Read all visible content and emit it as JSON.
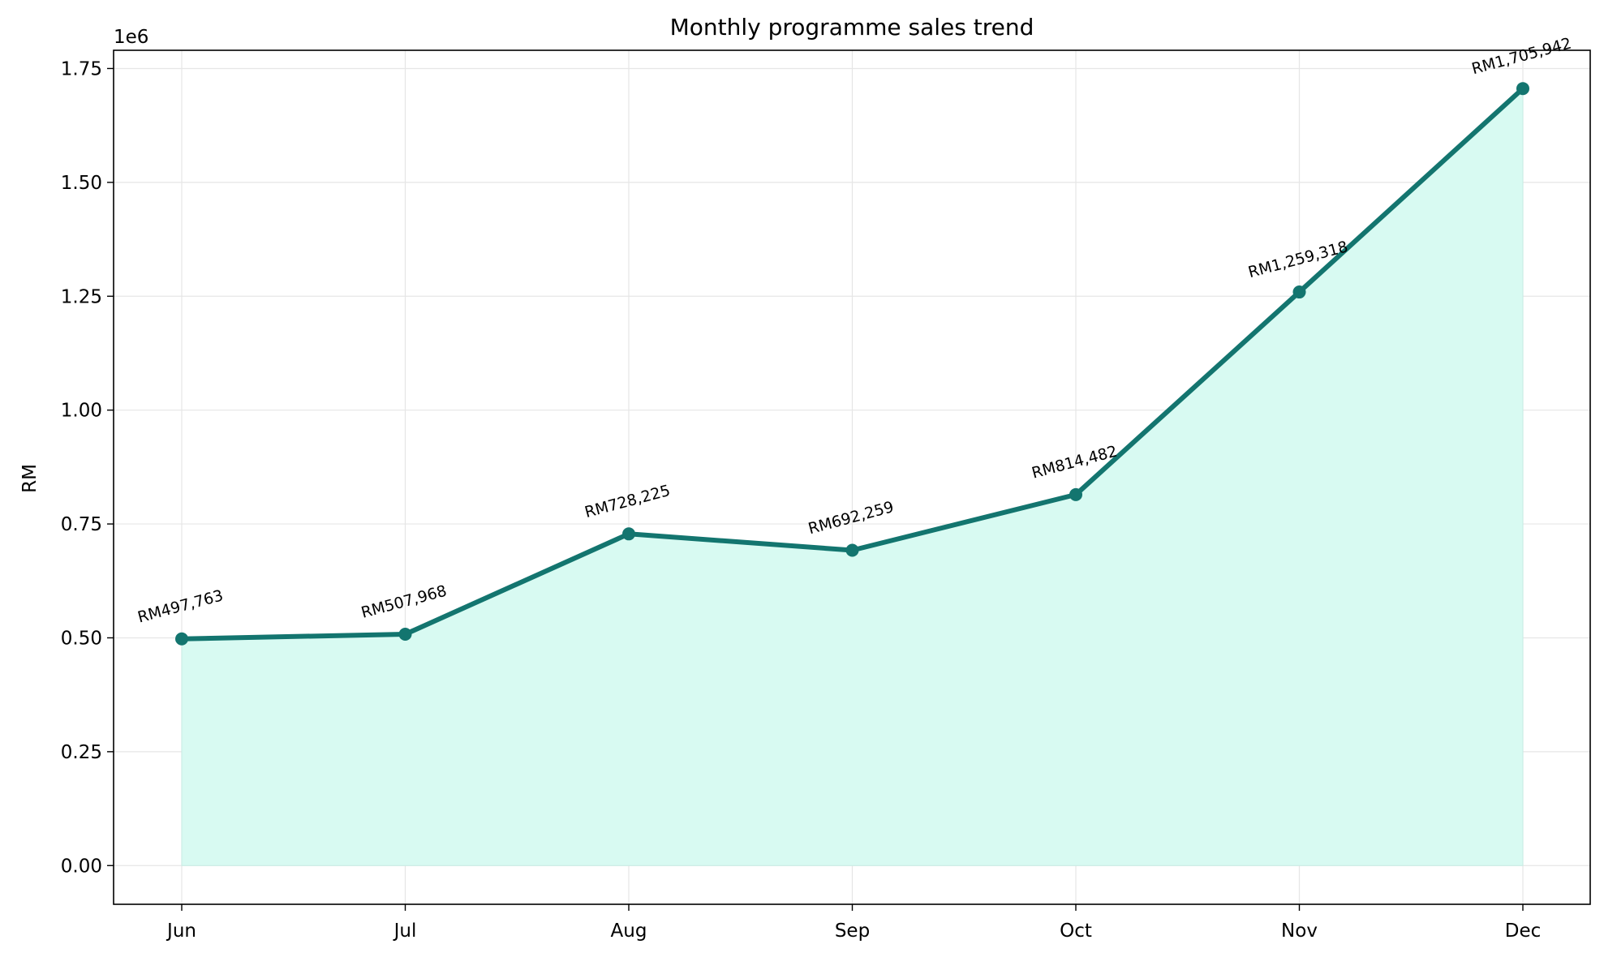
{
  "chart_data": {
    "type": "area",
    "title": "Monthly programme sales trend",
    "xlabel": "",
    "ylabel": "RM",
    "scale_note": "1e6",
    "categories": [
      "Jun",
      "Jul",
      "Aug",
      "Sep",
      "Oct",
      "Nov",
      "Dec"
    ],
    "values": [
      497763,
      507968,
      728225,
      692259,
      814482,
      1259318,
      1705942
    ],
    "data_labels": [
      "RM497,763",
      "RM507,968",
      "RM728,225",
      "RM692,259",
      "RM814,482",
      "RM1,259,318",
      "RM1,705,942"
    ],
    "ylim": [
      -85000,
      1790000
    ],
    "yticks": [
      0,
      250000,
      500000,
      750000,
      1000000,
      1250000,
      1500000,
      1750000
    ],
    "ytick_labels": [
      "0.00",
      "0.25",
      "0.50",
      "0.75",
      "1.00",
      "1.25",
      "1.50",
      "1.75"
    ],
    "grid": true,
    "line_color": "#13756f",
    "fill_color": "#d8faf2"
  }
}
